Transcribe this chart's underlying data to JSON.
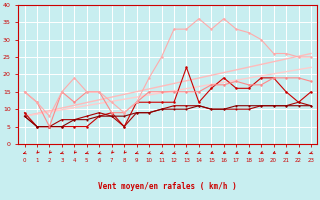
{
  "title": "",
  "xlabel": "Vent moyen/en rafales ( km/h )",
  "ylabel": "",
  "xlim": [
    -0.5,
    23.5
  ],
  "ylim": [
    0,
    40
  ],
  "yticks": [
    0,
    5,
    10,
    15,
    20,
    25,
    30,
    35,
    40
  ],
  "xticks": [
    0,
    1,
    2,
    3,
    4,
    5,
    6,
    7,
    8,
    9,
    10,
    11,
    12,
    13,
    14,
    15,
    16,
    17,
    18,
    19,
    20,
    21,
    22,
    23
  ],
  "bg_color": "#c8eef0",
  "grid_color": "#ffffff",
  "lines": [
    {
      "x": [
        0,
        1,
        2,
        3,
        4,
        5,
        6,
        7,
        8,
        9,
        10,
        11,
        12,
        13,
        14,
        15,
        16,
        17,
        18,
        19,
        20,
        21,
        22,
        23
      ],
      "y": [
        9,
        5,
        5,
        5,
        5,
        5,
        8,
        9,
        5,
        12,
        12,
        12,
        12,
        22,
        12,
        16,
        19,
        16,
        16,
        19,
        19,
        15,
        12,
        15
      ],
      "color": "#cc0000",
      "lw": 0.8,
      "marker": "o",
      "ms": 1.8
    },
    {
      "x": [
        0,
        1,
        2,
        3,
        4,
        5,
        6,
        7,
        8,
        9,
        10,
        11,
        12,
        13,
        14,
        15,
        16,
        17,
        18,
        19,
        20,
        21,
        22,
        23
      ],
      "y": [
        8,
        5,
        5,
        7,
        7,
        8,
        9,
        8,
        5,
        9,
        9,
        10,
        11,
        11,
        11,
        10,
        10,
        10,
        10,
        11,
        11,
        11,
        12,
        11
      ],
      "color": "#aa0000",
      "lw": 0.8,
      "marker": "o",
      "ms": 1.5
    },
    {
      "x": [
        0,
        1,
        2,
        3,
        4,
        5,
        6,
        7,
        8,
        9,
        10,
        11,
        12,
        13,
        14,
        15,
        16,
        17,
        18,
        19,
        20,
        21,
        22,
        23
      ],
      "y": [
        8,
        5,
        5,
        5,
        7,
        7,
        8,
        8,
        8,
        9,
        9,
        10,
        10,
        10,
        11,
        10,
        10,
        11,
        11,
        11,
        11,
        11,
        11,
        11
      ],
      "color": "#880000",
      "lw": 0.8,
      "marker": "o",
      "ms": 1.5
    },
    {
      "x": [
        0,
        1,
        2,
        3,
        4,
        5,
        6,
        7,
        8,
        9,
        10,
        11,
        12,
        13,
        14,
        15,
        16,
        17,
        18,
        19,
        20,
        21,
        22,
        23
      ],
      "y": [
        15,
        12,
        5,
        15,
        12,
        15,
        15,
        9,
        9,
        12,
        15,
        15,
        15,
        15,
        15,
        17,
        17,
        18,
        17,
        17,
        19,
        19,
        19,
        18
      ],
      "color": "#ff8888",
      "lw": 0.8,
      "marker": "o",
      "ms": 1.8
    },
    {
      "x": [
        0,
        1,
        2,
        3,
        4,
        5,
        6,
        7,
        8,
        9,
        10,
        11,
        12,
        13,
        14,
        15,
        16,
        17,
        18,
        19,
        20,
        21,
        22,
        23
      ],
      "y": [
        15,
        12,
        8,
        15,
        19,
        15,
        15,
        12,
        9,
        12,
        19,
        25,
        33,
        33,
        36,
        33,
        36,
        33,
        32,
        30,
        26,
        26,
        25,
        25
      ],
      "color": "#ffaaaa",
      "lw": 0.8,
      "marker": "o",
      "ms": 1.8
    },
    {
      "x": [
        0,
        23
      ],
      "y": [
        8,
        26
      ],
      "color": "#ffbbbb",
      "lw": 1.0,
      "marker": null,
      "ms": 0
    },
    {
      "x": [
        0,
        23
      ],
      "y": [
        8,
        22
      ],
      "color": "#ffcccc",
      "lw": 1.0,
      "marker": null,
      "ms": 0
    }
  ],
  "xlabel_color": "#cc0000",
  "tick_color": "#cc0000",
  "axis_color": "#cc0000"
}
